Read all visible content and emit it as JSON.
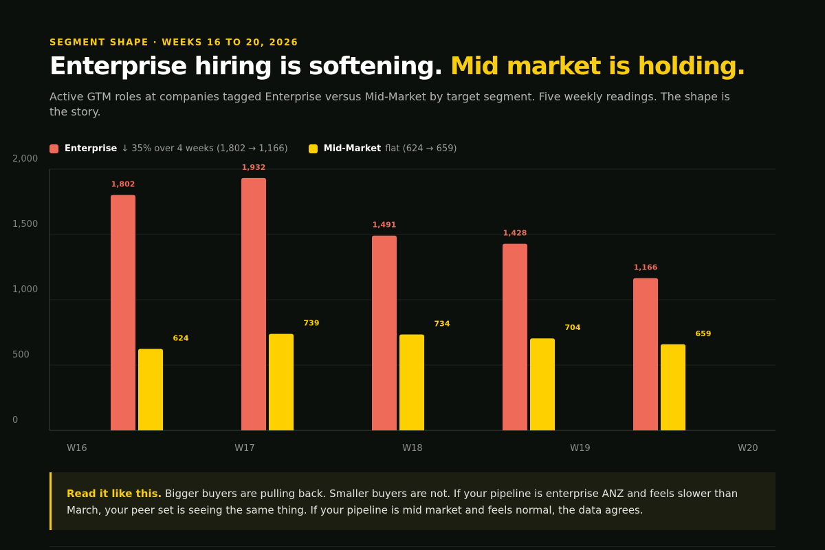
{
  "header": {
    "eyebrow": "SEGMENT SHAPE · WEEKS 16 TO 20, 2026",
    "headline_main": "Enterprise hiring is softening.",
    "headline_accent": "Mid market is holding.",
    "subtitle": "Active GTM roles at companies tagged Enterprise versus Mid-Market by target segment. Five weekly readings. The shape is the story."
  },
  "legend": [
    {
      "name": "Enterprise",
      "note": "↓ 35% over 4 weeks (1,802 → 1,166)",
      "color": "#ef6a58"
    },
    {
      "name": "Mid-Market",
      "note": "flat (624 → 659)",
      "color": "#ffd000"
    }
  ],
  "chart_data": {
    "type": "bar",
    "title": "",
    "xlabel": "",
    "ylabel": "",
    "categories": [
      "W16",
      "W17",
      "W18",
      "W19",
      "W20"
    ],
    "series": [
      {
        "name": "Enterprise",
        "color": "#ef6a58",
        "values": [
          1802,
          1932,
          1491,
          1428,
          1166
        ],
        "labels": [
          "1,802",
          "1,932",
          "1,491",
          "1,428",
          "1,166"
        ]
      },
      {
        "name": "Mid-Market",
        "color": "#ffd000",
        "values": [
          624,
          739,
          734,
          704,
          659
        ],
        "labels": [
          "624",
          "739",
          "734",
          "704",
          "659"
        ]
      }
    ],
    "ylim": [
      0,
      2000
    ],
    "yticks": [
      0,
      500,
      1000,
      1500,
      2000
    ],
    "ytick_labels": [
      "0",
      "500",
      "1,000",
      "1,500",
      "2,000"
    ],
    "grid": true,
    "legend_position": "top-left"
  },
  "callout": {
    "lead": "Read it like this.",
    "body": " Bigger buyers are pulling back. Smaller buyers are not. If your pipeline is enterprise ANZ and feels slower than March, your peer set is seeing the same thing. If your pipeline is mid market and feels normal, the data agrees."
  }
}
